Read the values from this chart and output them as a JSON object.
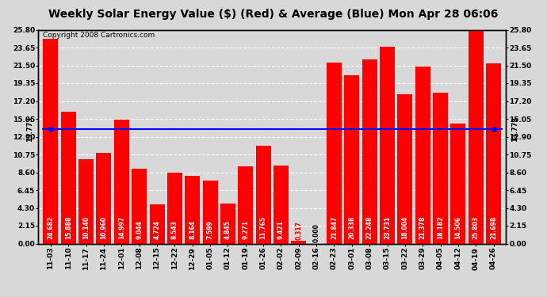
{
  "title": "Weekly Solar Energy Value ($) (Red) & Average (Blue) Mon Apr 28 06:06",
  "copyright": "Copyright 2008 Cartronics.com",
  "categories": [
    "11-03",
    "11-10",
    "11-17",
    "11-24",
    "12-01",
    "12-08",
    "12-15",
    "12-22",
    "12-29",
    "01-05",
    "01-12",
    "01-19",
    "01-26",
    "02-02",
    "02-09",
    "02-16",
    "02-23",
    "03-01",
    "03-08",
    "03-15",
    "03-22",
    "03-29",
    "04-05",
    "04-12",
    "04-19",
    "04-26"
  ],
  "values": [
    24.682,
    15.888,
    10.14,
    10.96,
    14.997,
    9.044,
    4.724,
    8.543,
    8.164,
    7.599,
    4.845,
    9.271,
    11.765,
    9.421,
    0.317,
    0.0,
    21.847,
    20.338,
    22.248,
    23.731,
    18.004,
    21.378,
    18.182,
    14.506,
    25.803,
    21.698
  ],
  "average": 13.773,
  "bar_color": "#FF0000",
  "avg_line_color": "#0000FF",
  "avg_dot_color": "#0000FF",
  "plot_bg_color": "#D8D8D8",
  "fig_bg_color": "#D8D8D8",
  "grid_color": "#FFFFFF",
  "title_fontsize": 10,
  "copyright_fontsize": 6.5,
  "bar_label_fontsize": 5.5,
  "tick_fontsize": 6.5,
  "ytick_values": [
    0.0,
    2.15,
    4.3,
    6.45,
    8.6,
    10.75,
    12.9,
    15.05,
    17.2,
    19.35,
    21.5,
    23.65,
    25.8
  ],
  "ymax": 25.8,
  "ymin": 0.0,
  "avg_label": "13.773",
  "avg_label_color": "#000000",
  "avg_label_fontsize": 6
}
